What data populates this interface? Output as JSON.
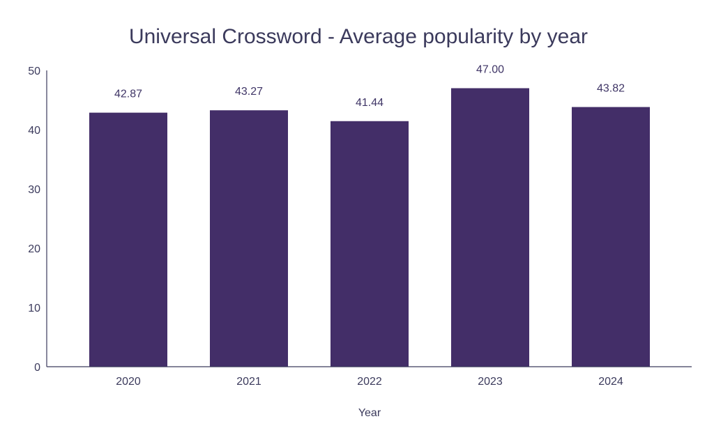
{
  "chart_data": {
    "type": "bar",
    "title": "Universal Crossword - Average popularity by year",
    "xlabel": "Year",
    "ylabel": "",
    "categories": [
      "2020",
      "2021",
      "2022",
      "2023",
      "2024"
    ],
    "values": [
      42.87,
      43.27,
      41.44,
      47.0,
      43.82
    ],
    "value_labels": [
      "42.87",
      "43.27",
      "41.44",
      "47.00",
      "43.82"
    ],
    "ylim": [
      0,
      50
    ],
    "yticks": [
      "0",
      "10",
      "20",
      "30",
      "40",
      "50"
    ],
    "grid": false,
    "legend": "none",
    "bar_color": "#432e68"
  }
}
